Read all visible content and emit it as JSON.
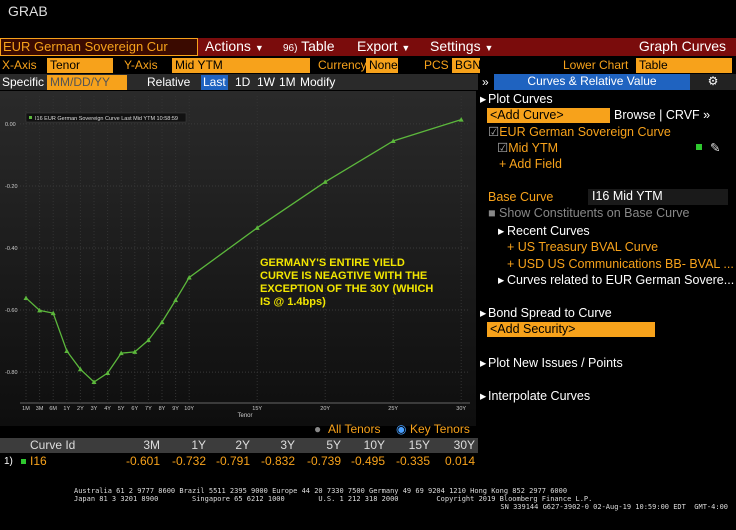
{
  "header": {
    "title": "GRAB"
  },
  "menu": {
    "security": "EUR German Sovereign Cur",
    "actions": "Actions",
    "table_number": "96)",
    "table": "Table",
    "export": "Export",
    "settings": "Settings",
    "mode": "Graph Curves"
  },
  "toolbar": {
    "x_axis_label": "X-Axis",
    "x_axis": "Tenor",
    "y_axis_label": "Y-Axis",
    "y_axis": "Mid YTM",
    "currency_label": "Currency",
    "currency": "None",
    "pcs_label": "PCS",
    "pcs": "BGN",
    "lower_chart_label": "Lower Chart",
    "lower_chart": "Table"
  },
  "date_bar": {
    "specific": "Specific",
    "date": "MM/DD/YY",
    "relative": "Relative",
    "ranges": [
      "Last",
      "1D",
      "1W",
      "1M"
    ],
    "modify": "Modify",
    "panel_tab": "Curves & Relative Value"
  },
  "panel": {
    "plot_curves": "Plot Curves",
    "add_curve": "<Add Curve>",
    "browse": "Browse | CRVF »",
    "curve": "EUR German Sovereign Curve",
    "field": "Mid YTM",
    "add_field": "+ Add Field",
    "base_curve_label": "Base Curve",
    "base_curve": "I16 Mid YTM",
    "show_constituents": "Show Constituents on Base Curve",
    "recent_curves": "Recent Curves",
    "recent": [
      "+ US Treasury BVAL Curve",
      "+ USD US Communications BB- BVAL ..."
    ],
    "related": "Curves related to EUR German Sovere...",
    "bond_spread": "Bond Spread to Curve",
    "add_security": "<Add Security>",
    "plot_new": "Plot New Issues / Points",
    "interpolate": "Interpolate Curves"
  },
  "chart_data": {
    "type": "line",
    "categories": [
      "1M",
      "3M",
      "6M",
      "1Y",
      "2Y",
      "3Y",
      "4Y",
      "5Y",
      "6Y",
      "7Y",
      "8Y",
      "9Y",
      "10Y",
      "15Y",
      "20Y",
      "25Y",
      "30Y"
    ],
    "series": [
      {
        "name": "I16 EUR German Sovereign Curve Last Mid YTM 10:58:59",
        "color": "#5cb83c",
        "values": [
          -0.561,
          -0.601,
          -0.61,
          -0.732,
          -0.791,
          -0.832,
          -0.803,
          -0.739,
          -0.735,
          -0.697,
          -0.639,
          -0.568,
          -0.495,
          -0.335,
          -0.187,
          -0.055,
          0.014
        ]
      }
    ],
    "ylim": [
      -0.89,
      0.09
    ],
    "yticks": [
      {
        "value": 0,
        "label": "0.00"
      },
      {
        "value": -0.2,
        "label": "-0.20"
      },
      {
        "value": -0.4,
        "label": "-0.40"
      },
      {
        "value": -0.6,
        "label": "-0.60"
      },
      {
        "value": -0.8,
        "label": "-0.80"
      }
    ],
    "x_label": "Tenor",
    "grid": true,
    "annotation": [
      "GERMANY'S ENTIRE YIELD",
      "CURVE IS NEAGTIVE WITH THE",
      "EXCEPTION OF THE 30Y (WHICH",
      "IS @ 1.4bps)"
    ]
  },
  "tenor_toggle": {
    "all": "All Tenors",
    "key": "Key Tenors"
  },
  "table": {
    "headers": [
      "Curve Id",
      "3M",
      "1Y",
      "2Y",
      "3Y",
      "5Y",
      "10Y",
      "15Y",
      "30Y"
    ],
    "rows": [
      [
        "1)",
        "I16",
        "-0.601",
        "-0.732",
        "-0.791",
        "-0.832",
        "-0.739",
        "-0.495",
        "-0.335",
        "0.014"
      ]
    ]
  },
  "footer": {
    "lines": [
      "Australia 61 2 9777 8600 Brazil 5511 2395 9000 Europe 44 20 7330 7500 Germany 49 69 9204 1210 Hong Kong 852 2977 6000",
      "Japan 81 3 3201 8900        Singapore 65 6212 1000        U.S. 1 212 318 2000         Copyright 2019 Bloomberg Finance L.P.",
      "SN 339144 G627-3902-0 02-Aug-19 10:59:00 EDT  GMT-4:00"
    ]
  }
}
